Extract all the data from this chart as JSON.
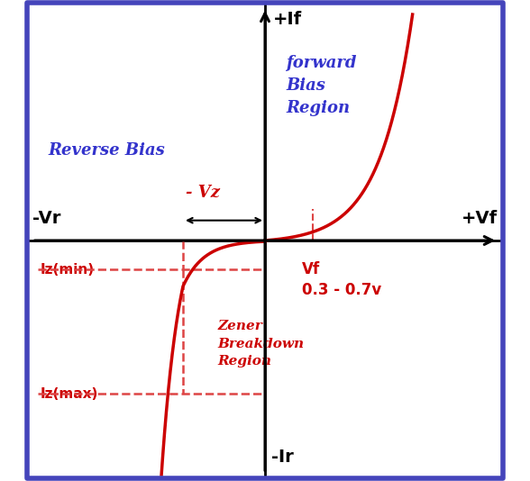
{
  "bg_color": "#ffffff",
  "border_color": "#4444bb",
  "axis_color": "#000000",
  "curve_color": "#cc0000",
  "dashed_color": "#dd4444",
  "blue_text_color": "#3333cc",
  "red_text_color": "#cc0000",
  "xlim": [
    -4.5,
    4.5
  ],
  "ylim": [
    -4.5,
    4.5
  ],
  "vz_x": -1.55,
  "vf_marker_x": 0.9,
  "iz_min_y": -0.55,
  "iz_max_y": -2.9,
  "labels": {
    "pos_if": "+If",
    "neg_ir": "-Ir",
    "pos_vf": "+Vf",
    "neg_vr": "-Vr",
    "vz_label": "- Vz",
    "vf_label": "Vf\n0.3 - 0.7v",
    "iz_min": "Iz(min)",
    "iz_max": "Iz(max)",
    "forward_region": "forward\nBias\nRegion",
    "reverse_bias": "Reverse Bias",
    "zener_region": "Zener\nBreakdown\nRegion"
  }
}
